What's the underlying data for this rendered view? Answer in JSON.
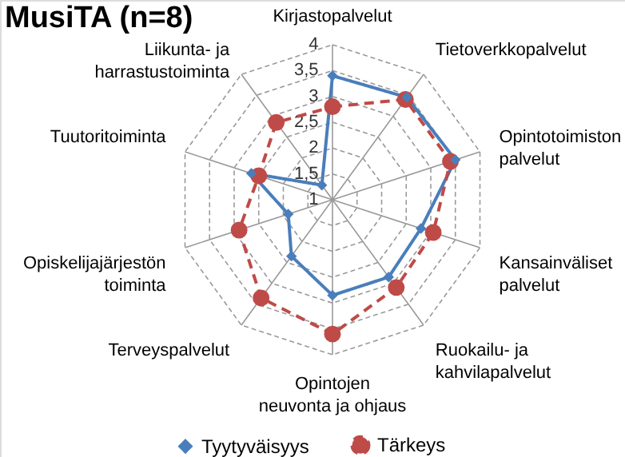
{
  "chart_data": {
    "type": "radar",
    "title": "MusiTA (n=8)",
    "categories": [
      "Kirjastopalvelut",
      "Tietoverkkopalvelut",
      "Opintotoimiston\npalvelut",
      "Kansainväliset\npalvelut",
      "Ruokailu- ja\nkahvilapalvelut",
      "Opintojen\nneuvonta ja ohjaus",
      "Terveyspalvelut",
      "Opiskelijajärjestön\ntoiminta",
      "Tuutoritoiminta",
      "Liikunta- ja\nharrastustoiminta"
    ],
    "ylim": [
      1,
      4
    ],
    "yticks": [
      1,
      {
        "value": 1.5,
        "label": "1,5"
      },
      2,
      {
        "value": 2.5,
        "label": "2,5"
      },
      3,
      {
        "value": 3.5,
        "label": "3,5"
      },
      4
    ],
    "grid": true,
    "legend": "bottom",
    "series": [
      {
        "name": "Tyytyväisyys",
        "color": "#4a7ebb",
        "marker": "diamond",
        "line_style": "solid",
        "values": [
          3.4,
          3.45,
          3.5,
          2.8,
          2.85,
          2.85,
          2.35,
          1.9,
          2.65,
          1.35
        ]
      },
      {
        "name": "Tärkeys",
        "color": "#be4b48",
        "marker": "circle",
        "line_style": "dashed",
        "values": [
          2.8,
          3.4,
          3.4,
          3.05,
          3.1,
          3.6,
          3.35,
          2.9,
          2.5,
          2.85
        ]
      }
    ]
  }
}
